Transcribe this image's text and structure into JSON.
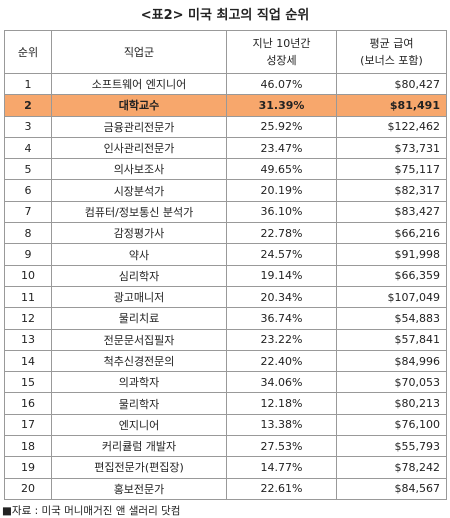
{
  "title": "<표2> 미국 최고의 직업 순위",
  "table": {
    "header": [
      [
        "순위"
      ],
      [
        "직업군"
      ],
      [
        "지난 10년간",
        "성장세"
      ],
      [
        "평균 급여",
        "(보너스 포함)"
      ]
    ],
    "rows": [
      [
        "1",
        "소프트웨어 엔지니어",
        "46.07%",
        "$80,427"
      ],
      [
        "2",
        "대학교수",
        "31.39%",
        "$81,491"
      ],
      [
        "3",
        "금융관리전문가",
        "25.92%",
        "$122,462"
      ],
      [
        "4",
        "인사관리전문가",
        "23.47%",
        "$73,731"
      ],
      [
        "5",
        "의사보조사",
        "49.65%",
        "$75,117"
      ],
      [
        "6",
        "시장분석가",
        "20.19%",
        "$82,317"
      ],
      [
        "7",
        "컴퓨터/정보통신 분석가",
        "36.10%",
        "$83,427"
      ],
      [
        "8",
        "감정평가사",
        "22.78%",
        "$66,216"
      ],
      [
        "9",
        "약사",
        "24.57%",
        "$91,998"
      ],
      [
        "10",
        "심리학자",
        "19.14%",
        "$66,359"
      ],
      [
        "11",
        "광고매니저",
        "20.34%",
        "$107,049"
      ],
      [
        "12",
        "물리치료",
        "36.74%",
        "$54,883"
      ],
      [
        "13",
        "전문문서집필자",
        "23.22%",
        "$57,841"
      ],
      [
        "14",
        "척추신경전문의",
        "22.40%",
        "$84,996"
      ],
      [
        "15",
        "의과학자",
        "34.06%",
        "$70,053"
      ],
      [
        "16",
        "물리학자",
        "12.18%",
        "$80,213"
      ],
      [
        "17",
        "엔지니어",
        "13.38%",
        "$76,100"
      ],
      [
        "18",
        "커리큘럼 개발자",
        "27.53%",
        "$55,793"
      ],
      [
        "19",
        "편집전문가(편집장)",
        "14.77%",
        "$78,242"
      ],
      [
        "20",
        "홍보전문가",
        "22.61%",
        "$84,567"
      ]
    ]
  },
  "footer": "■자료 : 미국 머니매거진 앤 샐러리 닷컴"
}
